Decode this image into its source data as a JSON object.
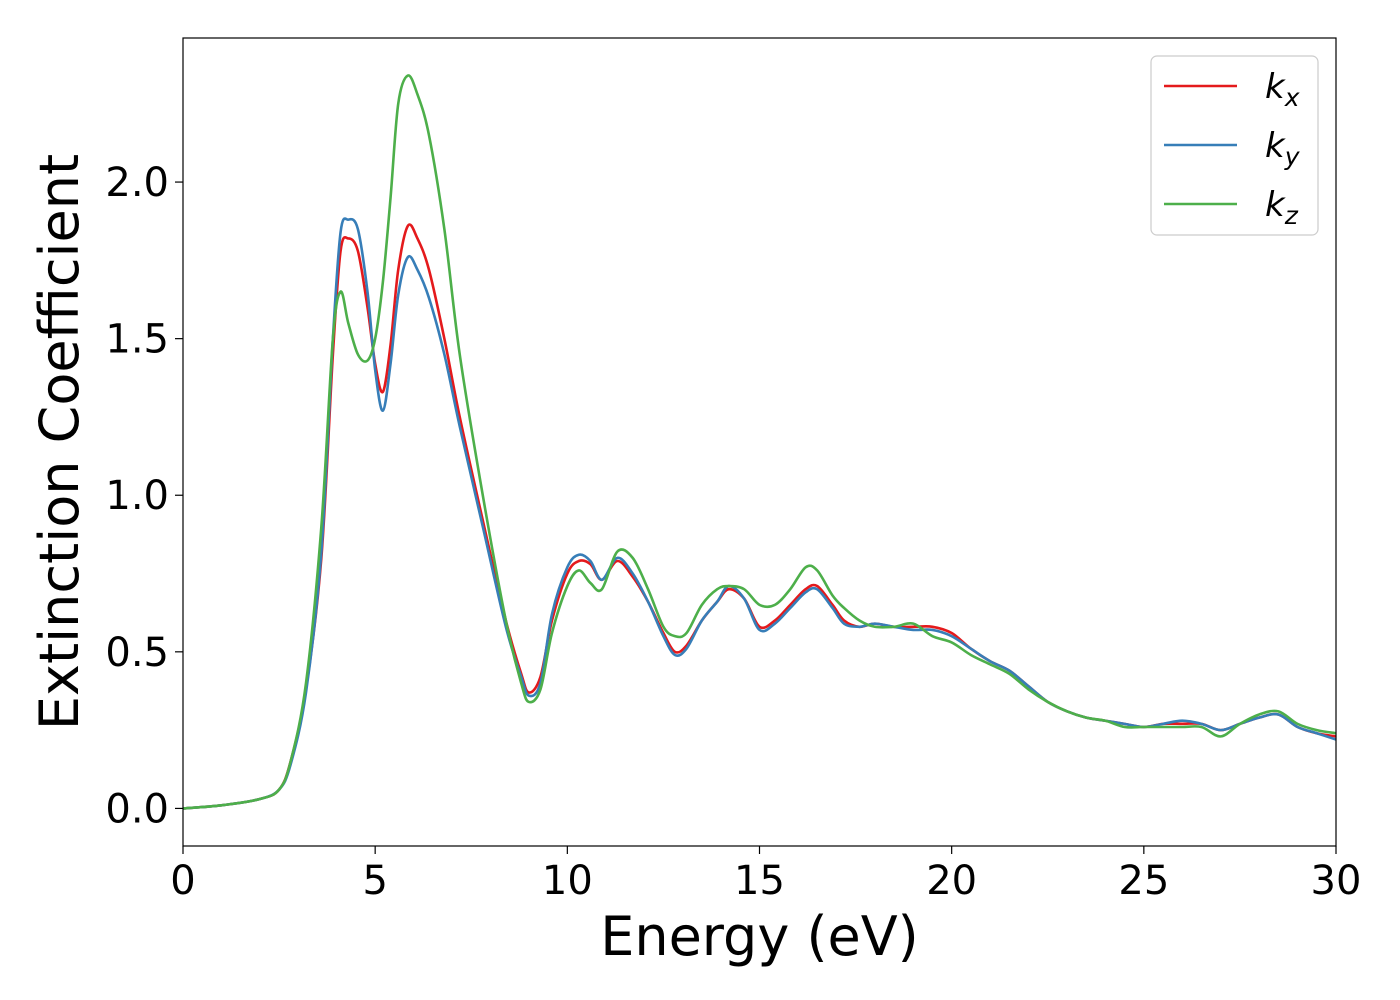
{
  "chart_data": {
    "type": "line",
    "title": "",
    "xlabel": "Energy (eV)",
    "ylabel": "Extinction Coefficient",
    "xlim": [
      0,
      30
    ],
    "ylim": [
      -0.12,
      2.46
    ],
    "xticks": [
      0,
      5,
      10,
      15,
      20,
      25,
      30
    ],
    "xtick_labels": [
      "0",
      "5",
      "10",
      "15",
      "20",
      "25",
      "30"
    ],
    "yticks": [
      0.0,
      0.5,
      1.0,
      1.5,
      2.0
    ],
    "ytick_labels": [
      "0.0",
      "0.5",
      "1.0",
      "1.5",
      "2.0"
    ],
    "grid": false,
    "legend_position": "top-right",
    "series": [
      {
        "name": "k_x",
        "label_main": "k",
        "label_sub": "x",
        "color": "#e41a1c",
        "x": [
          0,
          1,
          2,
          2.5,
          2.8,
          3.2,
          3.6,
          3.9,
          4.1,
          4.3,
          4.55,
          4.8,
          5.0,
          5.2,
          5.4,
          5.6,
          5.85,
          6.1,
          6.4,
          6.8,
          7.2,
          7.8,
          8.4,
          8.8,
          9.0,
          9.3,
          9.6,
          10.0,
          10.3,
          10.6,
          10.9,
          11.3,
          11.7,
          12.1,
          12.5,
          12.8,
          13.1,
          13.5,
          13.9,
          14.2,
          14.6,
          15.0,
          15.4,
          15.8,
          16.2,
          16.5,
          16.9,
          17.2,
          17.6,
          18.0,
          18.5,
          19.0,
          19.5,
          20.0,
          20.5,
          21.0,
          21.5,
          22.0,
          22.5,
          23.0,
          23.5,
          24.0,
          24.5,
          25.0,
          25.5,
          26.0,
          26.5,
          27.0,
          27.5,
          28.0,
          28.5,
          29.0,
          29.5,
          30.0
        ],
        "y": [
          0.0,
          0.01,
          0.03,
          0.06,
          0.15,
          0.38,
          0.8,
          1.45,
          1.78,
          1.82,
          1.78,
          1.6,
          1.42,
          1.33,
          1.48,
          1.72,
          1.86,
          1.82,
          1.72,
          1.5,
          1.25,
          0.92,
          0.6,
          0.43,
          0.37,
          0.42,
          0.6,
          0.75,
          0.79,
          0.78,
          0.73,
          0.79,
          0.74,
          0.66,
          0.56,
          0.5,
          0.52,
          0.6,
          0.66,
          0.7,
          0.67,
          0.58,
          0.6,
          0.65,
          0.7,
          0.71,
          0.65,
          0.6,
          0.58,
          0.59,
          0.58,
          0.58,
          0.58,
          0.56,
          0.51,
          0.47,
          0.44,
          0.39,
          0.34,
          0.31,
          0.29,
          0.28,
          0.27,
          0.26,
          0.27,
          0.27,
          0.27,
          0.25,
          0.27,
          0.29,
          0.3,
          0.26,
          0.24,
          0.23
        ]
      },
      {
        "name": "k_y",
        "label_main": "k",
        "label_sub": "y",
        "color": "#377eb8",
        "x": [
          0,
          1,
          2,
          2.5,
          2.8,
          3.2,
          3.6,
          3.9,
          4.1,
          4.3,
          4.55,
          4.8,
          5.0,
          5.2,
          5.4,
          5.6,
          5.85,
          6.1,
          6.4,
          6.8,
          7.2,
          7.8,
          8.4,
          8.8,
          9.0,
          9.3,
          9.6,
          10.0,
          10.3,
          10.6,
          10.9,
          11.3,
          11.7,
          12.1,
          12.5,
          12.8,
          13.1,
          13.5,
          13.9,
          14.2,
          14.6,
          15.0,
          15.4,
          15.8,
          16.2,
          16.5,
          16.9,
          17.2,
          17.6,
          18.0,
          18.5,
          19.0,
          19.5,
          20.0,
          20.5,
          21.0,
          21.5,
          22.0,
          22.5,
          23.0,
          23.5,
          24.0,
          24.5,
          25.0,
          25.5,
          26.0,
          26.5,
          27.0,
          27.5,
          28.0,
          28.5,
          29.0,
          29.5,
          30.0
        ],
        "y": [
          0.0,
          0.01,
          0.03,
          0.06,
          0.14,
          0.37,
          0.82,
          1.5,
          1.84,
          1.88,
          1.85,
          1.65,
          1.4,
          1.27,
          1.42,
          1.64,
          1.76,
          1.72,
          1.63,
          1.45,
          1.22,
          0.9,
          0.58,
          0.42,
          0.36,
          0.4,
          0.62,
          0.77,
          0.81,
          0.79,
          0.73,
          0.8,
          0.75,
          0.66,
          0.55,
          0.49,
          0.51,
          0.6,
          0.66,
          0.71,
          0.67,
          0.57,
          0.59,
          0.64,
          0.69,
          0.7,
          0.64,
          0.59,
          0.58,
          0.59,
          0.58,
          0.57,
          0.57,
          0.55,
          0.51,
          0.47,
          0.44,
          0.39,
          0.34,
          0.31,
          0.29,
          0.28,
          0.27,
          0.26,
          0.27,
          0.28,
          0.27,
          0.25,
          0.27,
          0.29,
          0.3,
          0.26,
          0.24,
          0.22
        ]
      },
      {
        "name": "k_z",
        "label_main": "k",
        "label_sub": "z",
        "color": "#4daf4a",
        "x": [
          0,
          1,
          2,
          2.5,
          2.8,
          3.2,
          3.6,
          3.9,
          4.1,
          4.3,
          4.55,
          4.8,
          5.0,
          5.2,
          5.4,
          5.6,
          5.85,
          6.1,
          6.4,
          6.8,
          7.2,
          7.8,
          8.4,
          8.8,
          9.0,
          9.3,
          9.6,
          10.0,
          10.3,
          10.6,
          10.9,
          11.3,
          11.7,
          12.1,
          12.5,
          12.8,
          13.1,
          13.5,
          13.9,
          14.2,
          14.6,
          15.0,
          15.4,
          15.8,
          16.2,
          16.5,
          16.9,
          17.2,
          17.6,
          18.0,
          18.5,
          19.0,
          19.5,
          20.0,
          20.5,
          21.0,
          21.5,
          22.0,
          22.5,
          23.0,
          23.5,
          24.0,
          24.5,
          25.0,
          25.5,
          26.0,
          26.5,
          27.0,
          27.5,
          28.0,
          28.5,
          29.0,
          29.5,
          30.0
        ],
        "y": [
          0.0,
          0.01,
          0.03,
          0.06,
          0.15,
          0.4,
          0.9,
          1.5,
          1.65,
          1.55,
          1.45,
          1.43,
          1.5,
          1.68,
          1.95,
          2.25,
          2.34,
          2.28,
          2.15,
          1.85,
          1.45,
          1.0,
          0.6,
          0.4,
          0.34,
          0.38,
          0.56,
          0.71,
          0.76,
          0.72,
          0.7,
          0.82,
          0.8,
          0.7,
          0.58,
          0.55,
          0.56,
          0.65,
          0.7,
          0.71,
          0.7,
          0.65,
          0.65,
          0.7,
          0.77,
          0.76,
          0.68,
          0.64,
          0.6,
          0.58,
          0.58,
          0.59,
          0.55,
          0.53,
          0.49,
          0.46,
          0.43,
          0.38,
          0.34,
          0.31,
          0.29,
          0.28,
          0.26,
          0.26,
          0.26,
          0.26,
          0.26,
          0.23,
          0.27,
          0.3,
          0.31,
          0.27,
          0.25,
          0.24
        ]
      }
    ]
  }
}
